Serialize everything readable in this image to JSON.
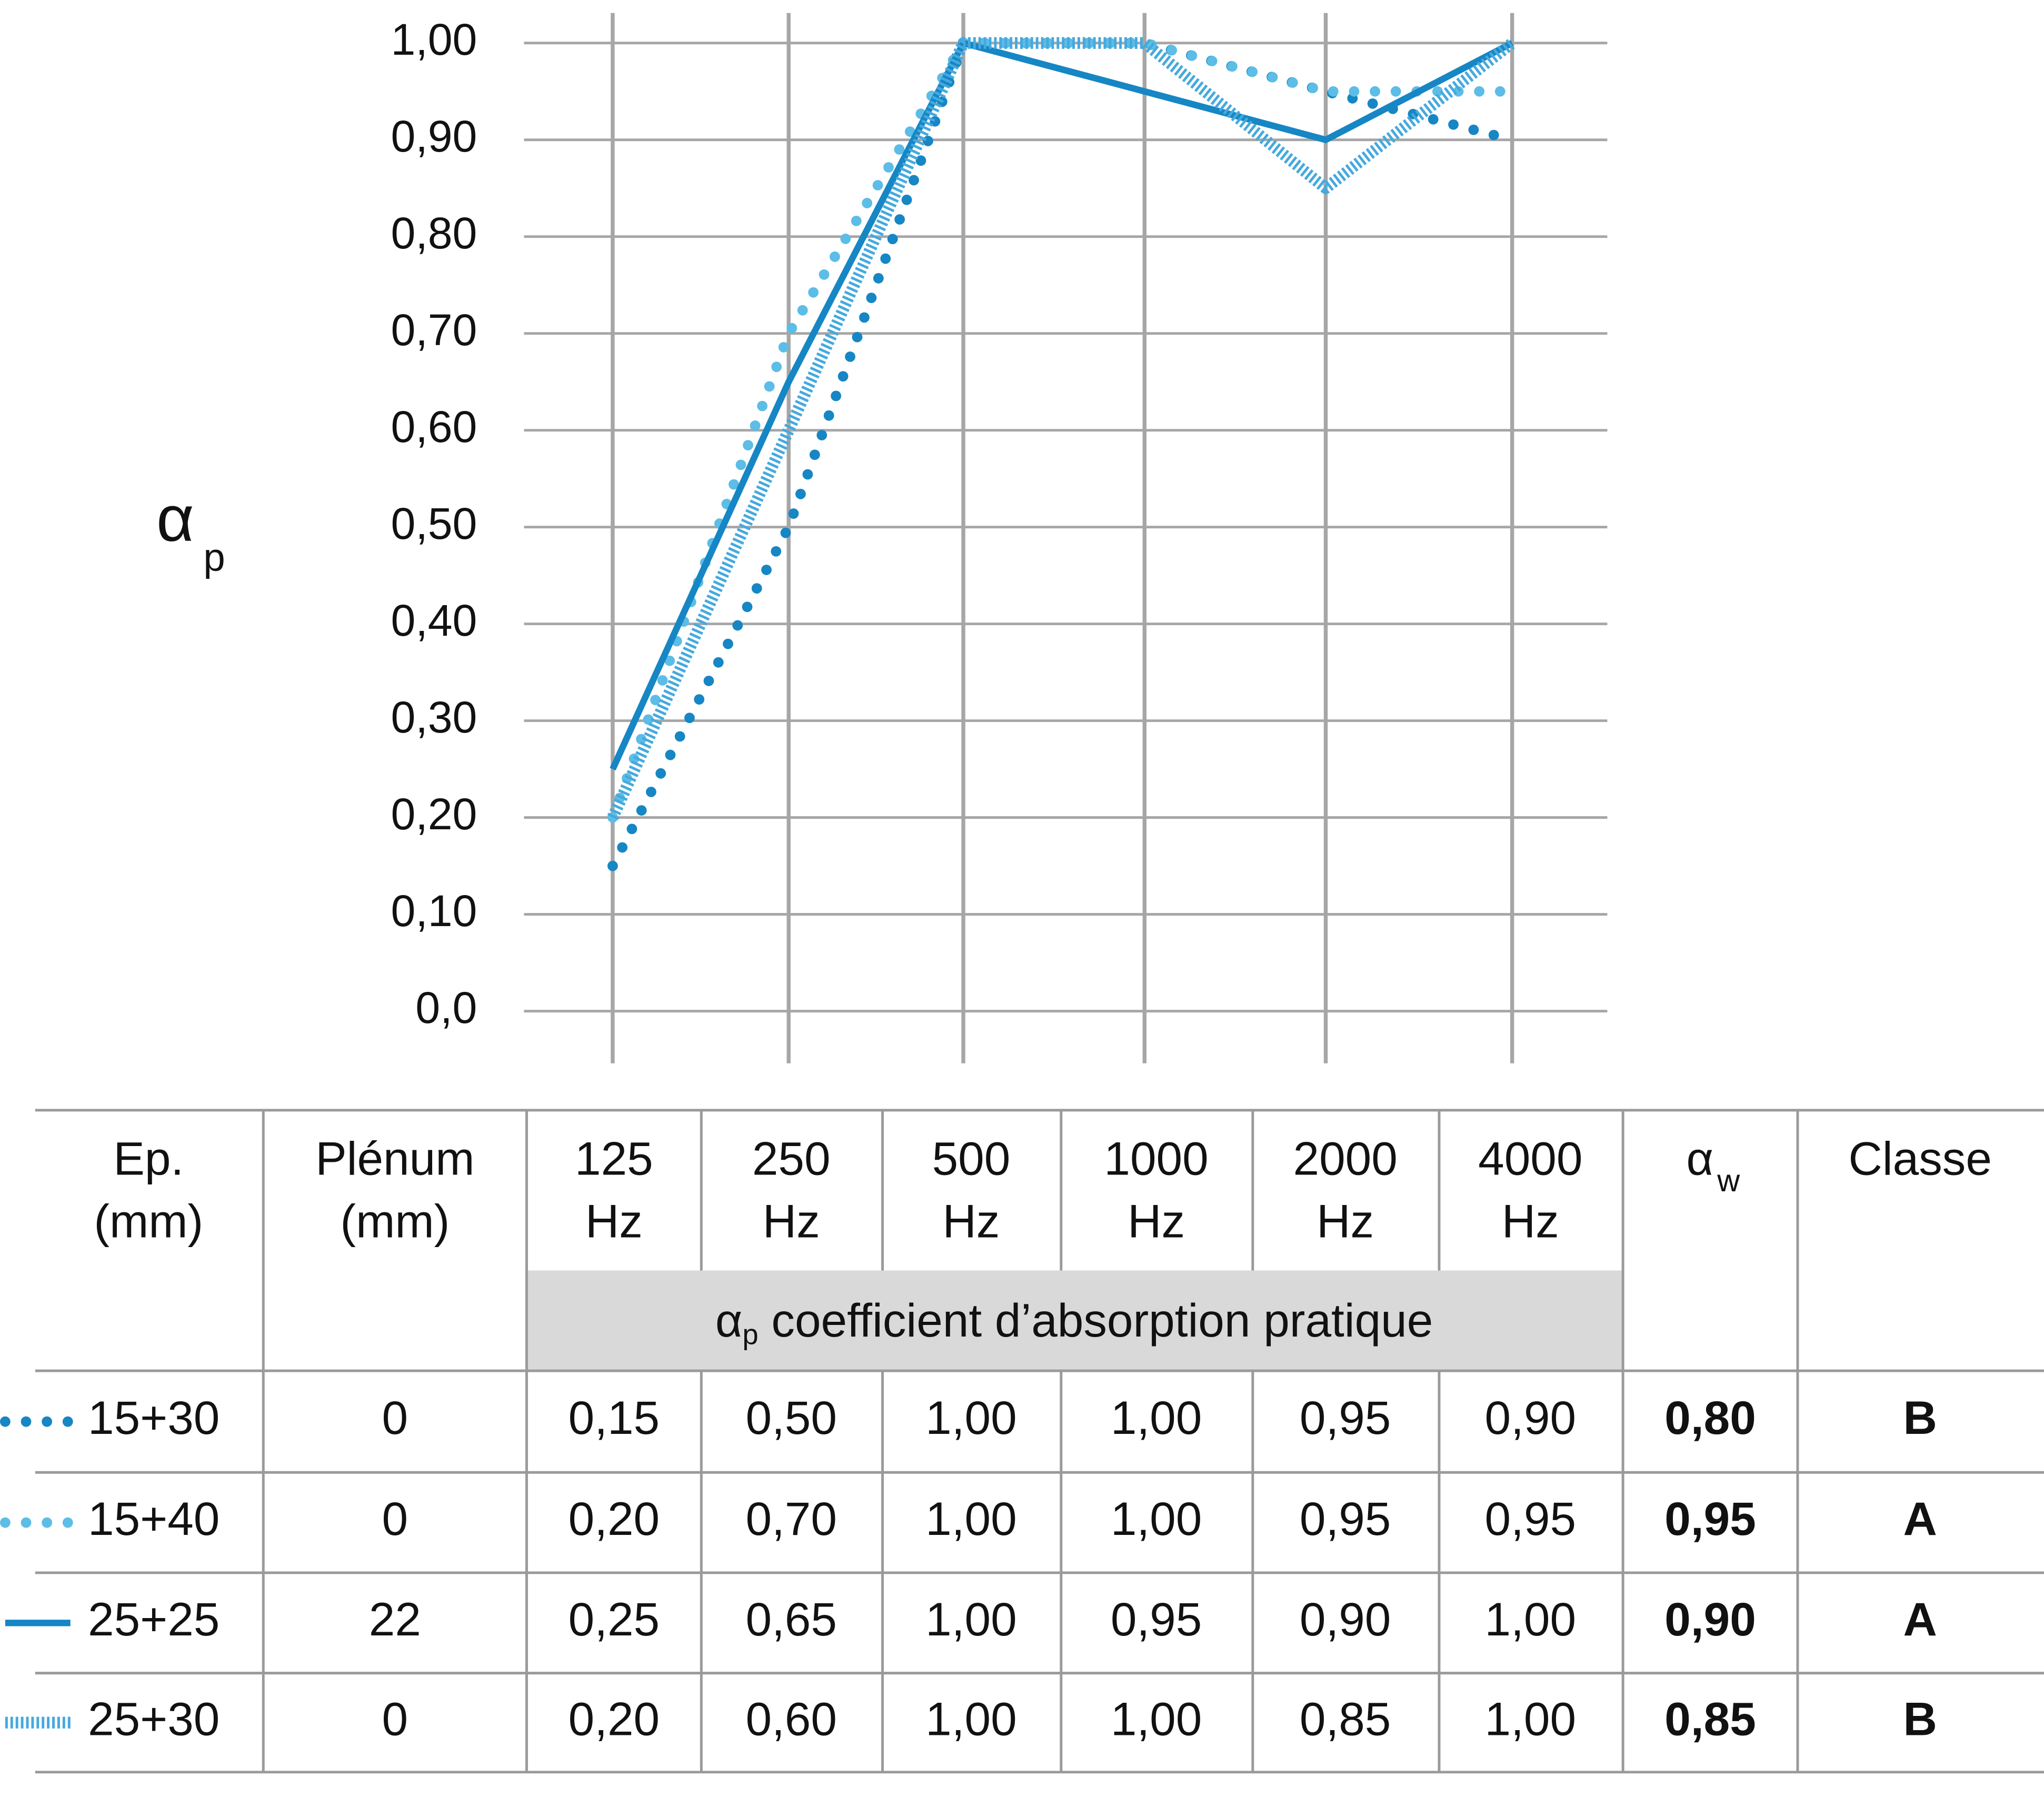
{
  "chart_data": {
    "type": "line",
    "ylabel": {
      "symbol": "α",
      "subscript": "p"
    },
    "categories": [
      "125",
      "250",
      "500",
      "1000",
      "2000",
      "4000"
    ],
    "x_unit": "Hz",
    "ylim": [
      0,
      1
    ],
    "yticks": [
      {
        "value": 0,
        "label": "0,0"
      },
      {
        "value": 0.1,
        "label": "0,10"
      },
      {
        "value": 0.2,
        "label": "0,20"
      },
      {
        "value": 0.3,
        "label": "0,30"
      },
      {
        "value": 0.4,
        "label": "0,40"
      },
      {
        "value": 0.5,
        "label": "0,50"
      },
      {
        "value": 0.6,
        "label": "0,60"
      },
      {
        "value": 0.7,
        "label": "0,70"
      },
      {
        "value": 0.8,
        "label": "0,80"
      },
      {
        "value": 0.9,
        "label": "0,90"
      },
      {
        "value": 1,
        "label": "1,00"
      }
    ],
    "grid": true,
    "series": [
      {
        "name": "15+30",
        "color": "#1686c4",
        "style": "dotted",
        "values": [
          0.15,
          0.5,
          1,
          1,
          0.95,
          0.9
        ],
        "value_labels": [
          "0,15",
          "0,50",
          "1,00",
          "1,00",
          "0,95",
          "0,90"
        ]
      },
      {
        "name": "15+40",
        "color": "#5cbde6",
        "style": "dotted",
        "values": [
          0.2,
          0.7,
          1,
          1,
          0.95,
          0.95
        ],
        "value_labels": [
          "0,20",
          "0,70",
          "1,00",
          "1,00",
          "0,95",
          "0,95"
        ]
      },
      {
        "name": "25+25",
        "color": "#1686c4",
        "style": "solid",
        "values": [
          0.25,
          0.65,
          1,
          0.95,
          0.9,
          1
        ],
        "value_labels": [
          "0,25",
          "0,65",
          "1,00",
          "0,95",
          "0,90",
          "1,00"
        ]
      },
      {
        "name": "25+30",
        "color": "#45a9de",
        "style": "hatched",
        "values": [
          0.2,
          0.6,
          1,
          1,
          0.85,
          1
        ],
        "value_labels": [
          "0,20",
          "0,60",
          "1,00",
          "1,00",
          "0,85",
          "1,00"
        ]
      }
    ]
  },
  "table": {
    "ep_header": [
      "Ep.",
      "(mm)"
    ],
    "plenum_header": [
      "Plénum",
      "(mm)"
    ],
    "aw_header": {
      "symbol": "α",
      "subscript": "w"
    },
    "classe_header": "Classe",
    "band": {
      "symbol": "α",
      "subscript": "p",
      "text": " coefficient d’absorption pratique"
    },
    "rows": [
      {
        "plenum": "0",
        "aw": "0,80",
        "classe": "B"
      },
      {
        "plenum": "0",
        "aw": "0,95",
        "classe": "A"
      },
      {
        "plenum": "22",
        "aw": "0,90",
        "classe": "A"
      },
      {
        "plenum": "0",
        "aw": "0,85",
        "classe": "B"
      }
    ]
  }
}
